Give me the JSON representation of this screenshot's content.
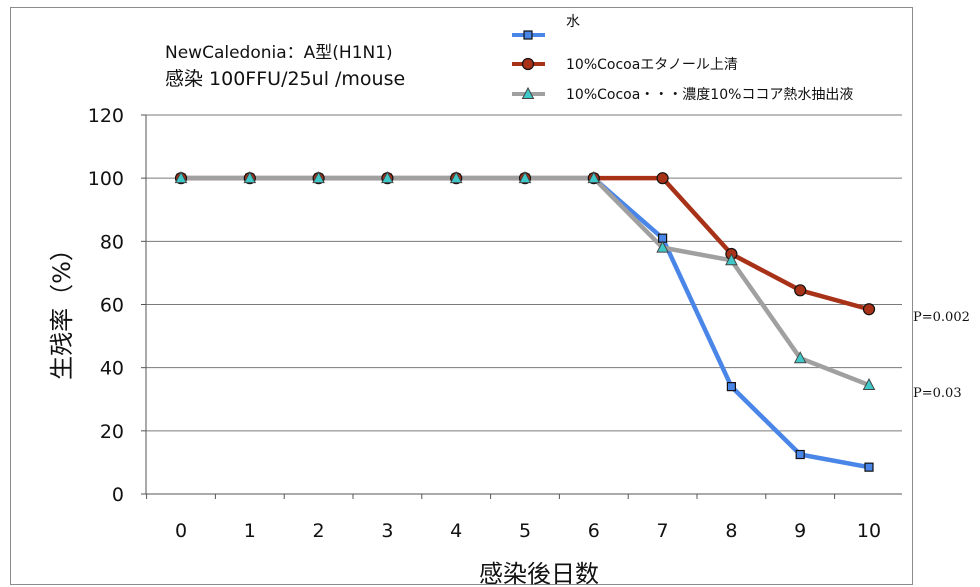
{
  "chart_data": {
    "type": "line",
    "annotation_line1": "NewCaledonia：A型(H1N1)",
    "annotation_line2": "感染 100FFU/25ul /mouse",
    "xlabel": "感染後日数",
    "ylabel": "生残率（%）",
    "x": [
      0,
      1,
      2,
      3,
      4,
      5,
      6,
      7,
      8,
      9,
      10
    ],
    "ylim": [
      0,
      120
    ],
    "yticks": [
      0,
      20,
      40,
      60,
      80,
      100,
      120
    ],
    "grid": true,
    "legend_position": "top",
    "series": [
      {
        "name": "水",
        "color": "#4a86e8",
        "marker": "square",
        "values": [
          100,
          100,
          100,
          100,
          100,
          100,
          100,
          81,
          34,
          12.5,
          8.5
        ]
      },
      {
        "name": "10%Cocoaエタノール上清",
        "color": "#a83218",
        "marker": "circle",
        "values": [
          100,
          100,
          100,
          100,
          100,
          100,
          100,
          100,
          76,
          64.5,
          58.5
        ]
      },
      {
        "name": "10%Cocoa・・・濃度10%ココア熱水抽出液",
        "color": "#a0a0a0",
        "marker": "triangle",
        "values": [
          100,
          100,
          100,
          100,
          100,
          100,
          100,
          78,
          74,
          43,
          34.5
        ]
      }
    ],
    "p_values": [
      {
        "label": "P=0.002",
        "series": 1
      },
      {
        "label": "P=0.03",
        "series": 2
      }
    ]
  }
}
